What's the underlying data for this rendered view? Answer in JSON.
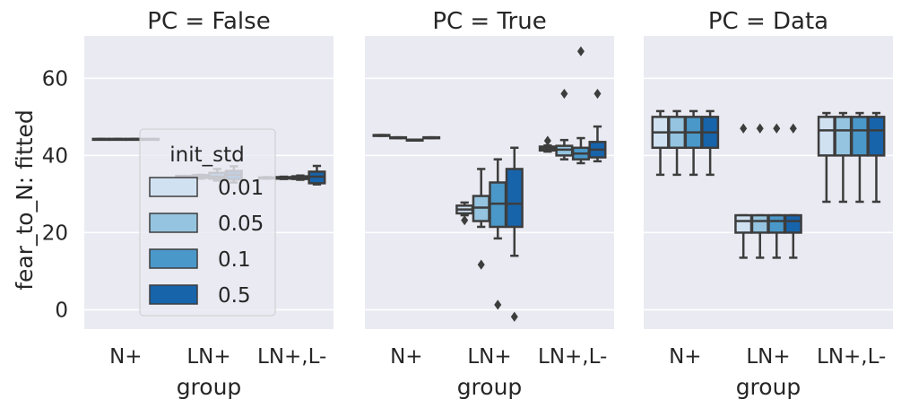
{
  "chart_data": {
    "type": "box",
    "ylabel": "fear_to_N: fitted",
    "xlabel": "group",
    "ylim": [
      -5,
      71
    ],
    "yticks": [
      0,
      20,
      40,
      60
    ],
    "categories": [
      "N+",
      "LN+",
      "LN+,L-"
    ],
    "grid": true,
    "legend": {
      "title": "init_std",
      "placement": "inside first panel, center",
      "entries": [
        "0.01",
        "0.05",
        "0.1",
        "0.5"
      ]
    },
    "hue_colors": [
      "#d0e1f2",
      "#94c4df",
      "#4a98c9",
      "#1764ab"
    ],
    "panels": [
      {
        "title": "PC = False",
        "boxes": [
          {
            "group": "N+",
            "init_std": "0.01",
            "q1": 44.1,
            "median": 44.2,
            "q3": 44.3,
            "whislo": 44.1,
            "whishi": 44.3,
            "fliers": []
          },
          {
            "group": "N+",
            "init_std": "0.05",
            "q1": 44.1,
            "median": 44.2,
            "q3": 44.3,
            "whislo": 44.1,
            "whishi": 44.3,
            "fliers": []
          },
          {
            "group": "N+",
            "init_std": "0.1",
            "q1": 44.1,
            "median": 44.2,
            "q3": 44.3,
            "whislo": 44.1,
            "whishi": 44.3,
            "fliers": []
          },
          {
            "group": "N+",
            "init_std": "0.5",
            "q1": 44.1,
            "median": 44.2,
            "q3": 44.3,
            "whislo": 44.1,
            "whishi": 44.3,
            "fliers": []
          },
          {
            "group": "LN+",
            "init_std": "0.01",
            "q1": 34.3,
            "median": 34.5,
            "q3": 34.7,
            "whislo": 34.3,
            "whishi": 34.7,
            "fliers": []
          },
          {
            "group": "LN+",
            "init_std": "0.05",
            "q1": 34.2,
            "median": 34.5,
            "q3": 34.9,
            "whislo": 34.0,
            "whishi": 35.0,
            "fliers": []
          },
          {
            "group": "LN+",
            "init_std": "0.1",
            "q1": 34.0,
            "median": 34.5,
            "q3": 35.5,
            "whislo": 33.5,
            "whishi": 36.5,
            "fliers": []
          },
          {
            "group": "LN+",
            "init_std": "0.5",
            "q1": 33.8,
            "median": 35.0,
            "q3": 36.0,
            "whislo": 33.0,
            "whishi": 37.2,
            "fliers": []
          },
          {
            "group": "LN+,L-",
            "init_std": "0.01",
            "q1": 34.1,
            "median": 34.2,
            "q3": 34.3,
            "whislo": 34.0,
            "whishi": 34.4,
            "fliers": []
          },
          {
            "group": "LN+,L-",
            "init_std": "0.05",
            "q1": 34.0,
            "median": 34.2,
            "q3": 34.4,
            "whislo": 33.9,
            "whishi": 34.5,
            "fliers": []
          },
          {
            "group": "LN+,L-",
            "init_std": "0.1",
            "q1": 33.9,
            "median": 34.2,
            "q3": 34.6,
            "whislo": 33.7,
            "whishi": 34.8,
            "fliers": []
          },
          {
            "group": "LN+,L-",
            "init_std": "0.5",
            "q1": 32.8,
            "median": 34.5,
            "q3": 35.8,
            "whislo": 32.5,
            "whishi": 37.3,
            "fliers": []
          }
        ]
      },
      {
        "title": "PC = True",
        "boxes": [
          {
            "group": "N+",
            "init_std": "0.01",
            "q1": 45.1,
            "median": 45.2,
            "q3": 45.3,
            "whislo": 45.1,
            "whishi": 45.3,
            "fliers": []
          },
          {
            "group": "N+",
            "init_std": "0.05",
            "q1": 44.5,
            "median": 44.6,
            "q3": 44.7,
            "whislo": 44.5,
            "whishi": 44.7,
            "fliers": []
          },
          {
            "group": "N+",
            "init_std": "0.1",
            "q1": 43.9,
            "median": 44.0,
            "q3": 44.1,
            "whislo": 43.9,
            "whishi": 44.1,
            "fliers": []
          },
          {
            "group": "N+",
            "init_std": "0.5",
            "q1": 44.5,
            "median": 44.6,
            "q3": 44.7,
            "whislo": 44.5,
            "whishi": 44.7,
            "fliers": []
          },
          {
            "group": "LN+",
            "init_std": "0.01",
            "q1": 25.0,
            "median": 26.0,
            "q3": 27.0,
            "whislo": 24.5,
            "whishi": 27.8,
            "fliers": [
              23.2
            ]
          },
          {
            "group": "LN+",
            "init_std": "0.05",
            "q1": 23.0,
            "median": 26.5,
            "q3": 29.5,
            "whislo": 21.5,
            "whishi": 36.5,
            "fliers": [
              11.7
            ]
          },
          {
            "group": "LN+",
            "init_std": "0.1",
            "q1": 21.5,
            "median": 27.5,
            "q3": 33.0,
            "whislo": 18.5,
            "whishi": 39.0,
            "fliers": [
              1.3
            ]
          },
          {
            "group": "LN+",
            "init_std": "0.5",
            "q1": 21.5,
            "median": 27.5,
            "q3": 36.5,
            "whislo": 14.0,
            "whishi": 42.0,
            "fliers": [
              -1.8
            ]
          },
          {
            "group": "LN+,L-",
            "init_std": "0.01",
            "q1": 41.3,
            "median": 41.8,
            "q3": 42.3,
            "whislo": 41.0,
            "whishi": 42.6,
            "fliers": [
              43.8
            ]
          },
          {
            "group": "LN+,L-",
            "init_std": "0.05",
            "q1": 40.0,
            "median": 41.5,
            "q3": 42.5,
            "whislo": 39.0,
            "whishi": 44.0,
            "fliers": [
              56.0
            ]
          },
          {
            "group": "LN+,L-",
            "init_std": "0.1",
            "q1": 39.0,
            "median": 40.5,
            "q3": 42.0,
            "whislo": 38.0,
            "whishi": 44.5,
            "fliers": [
              67.0
            ]
          },
          {
            "group": "LN+,L-",
            "init_std": "0.5",
            "q1": 39.5,
            "median": 41.5,
            "q3": 43.5,
            "whislo": 38.5,
            "whishi": 47.5,
            "fliers": [
              56.0
            ]
          }
        ]
      },
      {
        "title": "PC = Data",
        "boxes": [
          {
            "group": "N+",
            "init_std": "0.01",
            "q1": 42.0,
            "median": 46.0,
            "q3": 50.0,
            "whislo": 35.0,
            "whishi": 51.5,
            "fliers": []
          },
          {
            "group": "N+",
            "init_std": "0.05",
            "q1": 42.0,
            "median": 46.0,
            "q3": 50.0,
            "whislo": 35.0,
            "whishi": 51.5,
            "fliers": []
          },
          {
            "group": "N+",
            "init_std": "0.1",
            "q1": 42.0,
            "median": 46.0,
            "q3": 50.0,
            "whislo": 35.0,
            "whishi": 51.5,
            "fliers": []
          },
          {
            "group": "N+",
            "init_std": "0.5",
            "q1": 42.0,
            "median": 46.0,
            "q3": 50.0,
            "whislo": 35.0,
            "whishi": 51.5,
            "fliers": []
          },
          {
            "group": "LN+",
            "init_std": "0.01",
            "q1": 20.0,
            "median": 23.0,
            "q3": 24.5,
            "whislo": 13.5,
            "whishi": 24.5,
            "fliers": [
              47.0
            ]
          },
          {
            "group": "LN+",
            "init_std": "0.05",
            "q1": 20.0,
            "median": 23.0,
            "q3": 24.5,
            "whislo": 13.5,
            "whishi": 24.5,
            "fliers": [
              47.0
            ]
          },
          {
            "group": "LN+",
            "init_std": "0.1",
            "q1": 20.0,
            "median": 23.0,
            "q3": 24.5,
            "whislo": 13.5,
            "whishi": 24.5,
            "fliers": [
              47.0
            ]
          },
          {
            "group": "LN+",
            "init_std": "0.5",
            "q1": 20.0,
            "median": 23.0,
            "q3": 24.5,
            "whislo": 13.5,
            "whishi": 24.5,
            "fliers": [
              47.0
            ]
          },
          {
            "group": "LN+,L-",
            "init_std": "0.01",
            "q1": 40.0,
            "median": 46.5,
            "q3": 50.0,
            "whislo": 28.0,
            "whishi": 51.0,
            "fliers": []
          },
          {
            "group": "LN+,L-",
            "init_std": "0.05",
            "q1": 40.0,
            "median": 46.5,
            "q3": 50.0,
            "whislo": 28.0,
            "whishi": 51.0,
            "fliers": []
          },
          {
            "group": "LN+,L-",
            "init_std": "0.1",
            "q1": 40.0,
            "median": 46.5,
            "q3": 50.0,
            "whislo": 28.0,
            "whishi": 51.0,
            "fliers": []
          },
          {
            "group": "LN+,L-",
            "init_std": "0.5",
            "q1": 40.0,
            "median": 46.5,
            "q3": 50.0,
            "whislo": 28.0,
            "whishi": 51.0,
            "fliers": []
          }
        ]
      }
    ]
  }
}
